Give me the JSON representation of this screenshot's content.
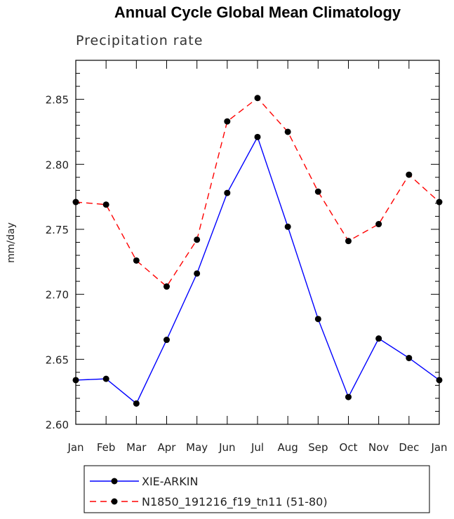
{
  "chart_data": {
    "type": "line",
    "title": "Annual Cycle Global Mean Climatology",
    "subtitle": "Precipitation rate",
    "ylabel": "mm/day",
    "xlabel": "",
    "categories": [
      "Jan",
      "Feb",
      "Mar",
      "Apr",
      "May",
      "Jun",
      "Jul",
      "Aug",
      "Sep",
      "Oct",
      "Nov",
      "Dec",
      "Jan"
    ],
    "ylim": [
      2.6,
      2.88
    ],
    "yticks": [
      "2.60",
      "2.65",
      "2.70",
      "2.75",
      "2.80",
      "2.85"
    ],
    "yticks_values": [
      2.6,
      2.65,
      2.7,
      2.75,
      2.8,
      2.85
    ],
    "grid": false,
    "legend_position": "bottom",
    "series": [
      {
        "name": "XIE-ARKIN",
        "color": "#0000ff",
        "line_style": "solid",
        "values": [
          2.634,
          2.635,
          2.616,
          2.665,
          2.716,
          2.778,
          2.821,
          2.752,
          2.681,
          2.621,
          2.666,
          2.651,
          2.634
        ]
      },
      {
        "name": "N1850_191216_f19_tn11 (51-80)",
        "color": "#ff0000",
        "line_style": "dashed",
        "values": [
          2.771,
          2.769,
          2.726,
          2.706,
          2.742,
          2.833,
          2.851,
          2.825,
          2.779,
          2.741,
          2.754,
          2.792,
          2.771
        ]
      }
    ]
  }
}
